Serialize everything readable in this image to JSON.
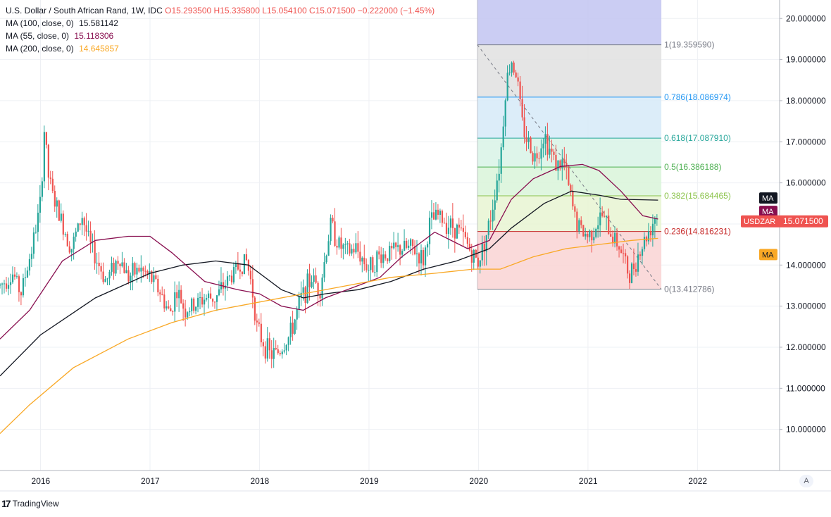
{
  "legend": {
    "title": "U.S. Dollar / South African Rand, 1W, IDC",
    "ohlc": "O15.293500  H15.335800  L15.054100  C15.071500  −0.222000  (−1.45%)",
    "ma": [
      {
        "label": "MA (100, close, 0)",
        "value": "15.581142",
        "color": "#131722"
      },
      {
        "label": "MA (55, close, 0)",
        "value": "15.118306",
        "color": "#880e4f"
      },
      {
        "label": "MA (200, close, 0)",
        "value": "14.645857",
        "color": "#f9a825"
      }
    ]
  },
  "branding": {
    "logo_text": "TradingView",
    "logo_mark": "17",
    "auto_label": "A"
  },
  "chart_data": {
    "type": "candlestick",
    "symbol": "USDZAR",
    "interval": "1W",
    "last_price": 15.0715,
    "last_price_label": "15.071500",
    "y_ticks": [
      "20.000000",
      "19.000000",
      "18.000000",
      "17.000000",
      "16.000000",
      "15.000000",
      "14.000000",
      "13.000000",
      "12.000000",
      "11.000000",
      "10.000000"
    ],
    "y_tick_values": [
      20,
      19,
      18,
      17,
      16,
      15,
      14,
      13,
      12,
      11,
      10
    ],
    "x_ticks": [
      "2016",
      "2017",
      "2018",
      "2019",
      "2020",
      "2021",
      "2022"
    ],
    "x_tick_years": [
      2016,
      2017,
      2018,
      2019,
      2020,
      2021,
      2022
    ],
    "xlim": [
      2015.63,
      2022.75
    ],
    "ylim": [
      9.0,
      20.45
    ],
    "price_path": [
      [
        2015.63,
        13.5
      ],
      [
        2015.75,
        13.8
      ],
      [
        2015.82,
        13.3
      ],
      [
        2015.92,
        14.4
      ],
      [
        2016.0,
        15.5
      ],
      [
        2016.04,
        17.6
      ],
      [
        2016.06,
        16.3
      ],
      [
        2016.12,
        15.6
      ],
      [
        2016.2,
        15.0
      ],
      [
        2016.28,
        14.4
      ],
      [
        2016.38,
        15.2
      ],
      [
        2016.45,
        14.5
      ],
      [
        2016.55,
        13.9
      ],
      [
        2016.6,
        13.6
      ],
      [
        2016.65,
        13.9
      ],
      [
        2016.72,
        14.2
      ],
      [
        2016.8,
        13.7
      ],
      [
        2016.9,
        13.9
      ],
      [
        2017.0,
        13.7
      ],
      [
        2017.08,
        13.4
      ],
      [
        2017.18,
        12.8
      ],
      [
        2017.24,
        13.4
      ],
      [
        2017.32,
        12.9
      ],
      [
        2017.4,
        13.0
      ],
      [
        2017.5,
        13.2
      ],
      [
        2017.6,
        13.2
      ],
      [
        2017.7,
        13.6
      ],
      [
        2017.82,
        14.0
      ],
      [
        2017.88,
        14.1
      ],
      [
        2017.93,
        13.5
      ],
      [
        2017.98,
        12.4
      ],
      [
        2018.1,
        11.8
      ],
      [
        2018.18,
        11.9
      ],
      [
        2018.28,
        12.3
      ],
      [
        2018.38,
        13.2
      ],
      [
        2018.48,
        13.7
      ],
      [
        2018.55,
        13.4
      ],
      [
        2018.65,
        15.0
      ],
      [
        2018.72,
        14.5
      ],
      [
        2018.8,
        14.3
      ],
      [
        2018.88,
        14.4
      ],
      [
        2019.0,
        13.9
      ],
      [
        2019.08,
        14.2
      ],
      [
        2019.2,
        14.3
      ],
      [
        2019.3,
        14.4
      ],
      [
        2019.4,
        14.4
      ],
      [
        2019.5,
        14.1
      ],
      [
        2019.55,
        15.0
      ],
      [
        2019.63,
        15.2
      ],
      [
        2019.72,
        15.0
      ],
      [
        2019.8,
        14.9
      ],
      [
        2019.88,
        14.6
      ],
      [
        2019.95,
        14.2
      ],
      [
        2020.0,
        14.1
      ],
      [
        2020.1,
        15.0
      ],
      [
        2020.2,
        16.6
      ],
      [
        2020.25,
        18.4
      ],
      [
        2020.3,
        19.0
      ],
      [
        2020.35,
        18.6
      ],
      [
        2020.4,
        17.4
      ],
      [
        2020.45,
        17.0
      ],
      [
        2020.52,
        16.6
      ],
      [
        2020.6,
        17.2
      ],
      [
        2020.65,
        16.8
      ],
      [
        2020.72,
        16.4
      ],
      [
        2020.78,
        16.5
      ],
      [
        2020.85,
        15.5
      ],
      [
        2020.9,
        15.0
      ],
      [
        2020.95,
        14.8
      ],
      [
        2021.0,
        14.7
      ],
      [
        2021.08,
        15.0
      ],
      [
        2021.13,
        15.2
      ],
      [
        2021.2,
        14.8
      ],
      [
        2021.28,
        14.5
      ],
      [
        2021.32,
        14.2
      ],
      [
        2021.38,
        13.7
      ],
      [
        2021.43,
        14.1
      ],
      [
        2021.5,
        14.5
      ],
      [
        2021.55,
        14.8
      ],
      [
        2021.6,
        15.1
      ],
      [
        2021.62,
        15.3
      ],
      [
        2021.64,
        15.07
      ]
    ],
    "series": [
      {
        "name": "MA (100, close, 0)",
        "color": "#131722",
        "points": [
          [
            2015.63,
            11.3
          ],
          [
            2016.0,
            12.3
          ],
          [
            2016.5,
            13.2
          ],
          [
            2017.0,
            13.8
          ],
          [
            2017.3,
            14.0
          ],
          [
            2017.6,
            14.1
          ],
          [
            2017.9,
            14.0
          ],
          [
            2018.2,
            13.4
          ],
          [
            2018.4,
            13.2
          ],
          [
            2018.6,
            13.3
          ],
          [
            2018.9,
            13.4
          ],
          [
            2019.2,
            13.6
          ],
          [
            2019.5,
            13.9
          ],
          [
            2019.8,
            14.1
          ],
          [
            2020.1,
            14.4
          ],
          [
            2020.3,
            14.9
          ],
          [
            2020.6,
            15.5
          ],
          [
            2020.85,
            15.8
          ],
          [
            2021.1,
            15.7
          ],
          [
            2021.3,
            15.6
          ],
          [
            2021.64,
            15.58
          ]
        ]
      },
      {
        "name": "MA (55, close, 0)",
        "color": "#880e4f",
        "points": [
          [
            2015.63,
            12.2
          ],
          [
            2015.9,
            12.9
          ],
          [
            2016.2,
            14.1
          ],
          [
            2016.5,
            14.6
          ],
          [
            2016.8,
            14.7
          ],
          [
            2017.0,
            14.7
          ],
          [
            2017.2,
            14.3
          ],
          [
            2017.5,
            13.6
          ],
          [
            2017.8,
            13.4
          ],
          [
            2018.0,
            13.3
          ],
          [
            2018.2,
            13.0
          ],
          [
            2018.4,
            12.9
          ],
          [
            2018.6,
            13.2
          ],
          [
            2018.9,
            13.5
          ],
          [
            2019.1,
            13.7
          ],
          [
            2019.3,
            14.2
          ],
          [
            2019.6,
            14.8
          ],
          [
            2019.9,
            14.4
          ],
          [
            2020.1,
            14.6
          ],
          [
            2020.3,
            15.6
          ],
          [
            2020.5,
            16.1
          ],
          [
            2020.75,
            16.4
          ],
          [
            2020.95,
            16.45
          ],
          [
            2021.1,
            16.3
          ],
          [
            2021.3,
            15.8
          ],
          [
            2021.5,
            15.2
          ],
          [
            2021.64,
            15.12
          ]
        ]
      },
      {
        "name": "MA (200, close, 0)",
        "color": "#f9a825",
        "points": [
          [
            2015.63,
            9.9
          ],
          [
            2015.9,
            10.6
          ],
          [
            2016.3,
            11.5
          ],
          [
            2016.8,
            12.2
          ],
          [
            2017.2,
            12.6
          ],
          [
            2017.6,
            12.9
          ],
          [
            2018.0,
            13.1
          ],
          [
            2018.4,
            13.3
          ],
          [
            2018.8,
            13.5
          ],
          [
            2019.2,
            13.7
          ],
          [
            2019.6,
            13.8
          ],
          [
            2019.95,
            13.9
          ],
          [
            2020.2,
            13.9
          ],
          [
            2020.5,
            14.2
          ],
          [
            2020.8,
            14.4
          ],
          [
            2021.1,
            14.5
          ],
          [
            2021.4,
            14.6
          ],
          [
            2021.64,
            14.65
          ]
        ]
      }
    ],
    "ma_axis_tags": [
      "MA",
      "MA",
      "MA"
    ],
    "fibonacci": {
      "x_range": [
        2019.99,
        2021.67
      ],
      "top_band_max": 20.45,
      "levels": [
        {
          "ratio": 1,
          "value": 19.35959,
          "label": "1(19.359590)",
          "color": "#787b86",
          "fill": "#e0e0e0"
        },
        {
          "ratio": 0.786,
          "value": 18.086974,
          "label": "0.786(18.086974)",
          "color": "#2196f3",
          "fill": "#d6eaf8"
        },
        {
          "ratio": 0.618,
          "value": 17.08791,
          "label": "0.618(17.087910)",
          "color": "#26a69a",
          "fill": "#d8f3e6"
        },
        {
          "ratio": 0.5,
          "value": 16.386188,
          "label": "0.5(16.386188)",
          "color": "#4caf50",
          "fill": "#d9f4d9"
        },
        {
          "ratio": 0.382,
          "value": 15.684465,
          "label": "0.382(15.684465)",
          "color": "#8bc34a",
          "fill": "#e8f5d2"
        },
        {
          "ratio": 0.236,
          "value": 14.816231,
          "label": "0.236(14.816231)",
          "color": "#c62828",
          "fill": "#f9d3d3"
        },
        {
          "ratio": 0,
          "value": 13.412786,
          "label": "0(13.412786)",
          "color": "#787b86"
        }
      ],
      "trend_line": [
        [
          2019.99,
          19.36
        ],
        [
          2021.67,
          13.41
        ]
      ]
    }
  }
}
